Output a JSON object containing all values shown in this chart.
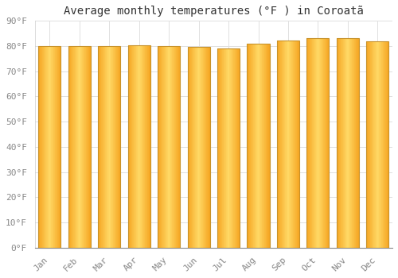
{
  "title": "Average monthly temperatures (°F ) in Coroatã",
  "months": [
    "Jan",
    "Feb",
    "Mar",
    "Apr",
    "May",
    "Jun",
    "Jul",
    "Aug",
    "Sep",
    "Oct",
    "Nov",
    "Dec"
  ],
  "values": [
    80.1,
    80.0,
    79.9,
    80.2,
    80.1,
    79.6,
    79.0,
    81.0,
    82.1,
    83.0,
    83.0,
    82.0
  ],
  "bar_color_center": "#FFD966",
  "bar_color_edge": "#F5A623",
  "bar_edge_color": "#C8922A",
  "background_color": "#FFFFFF",
  "plot_bg_color": "#FFFFFF",
  "grid_color": "#E0E0E0",
  "ylim": [
    0,
    90
  ],
  "ytick_step": 10,
  "title_fontsize": 10,
  "tick_fontsize": 8,
  "bar_width": 0.75
}
